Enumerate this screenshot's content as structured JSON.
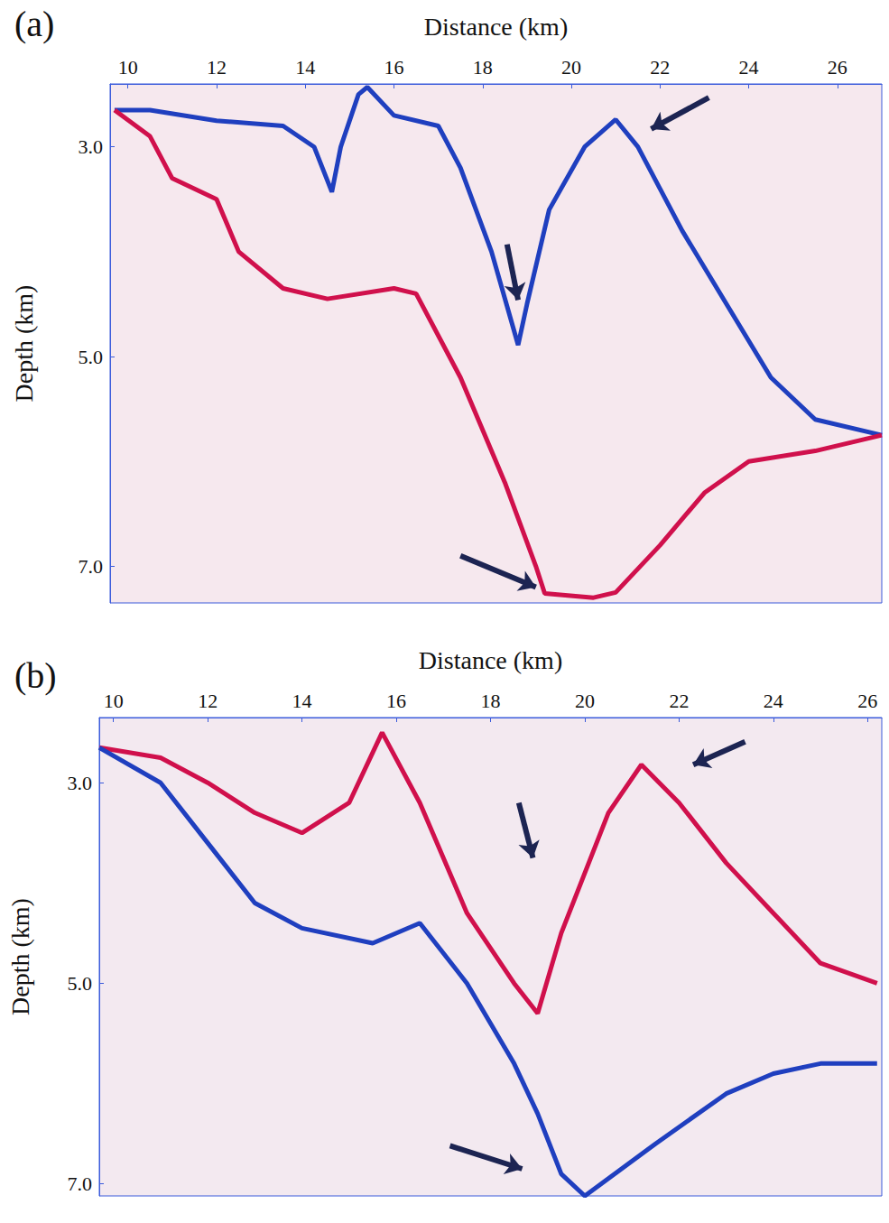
{
  "chart_data": [
    {
      "type": "line",
      "title": "(a)",
      "x_label": "Distance (km)",
      "y_label": "Depth (km)",
      "xlim": [
        9.6,
        27.0
      ],
      "ylim": [
        2.4,
        7.35
      ],
      "xticks": [
        10,
        12,
        14,
        16,
        18,
        20,
        22,
        24,
        26
      ],
      "yticks": [
        {
          "value": 3,
          "label": "3.0"
        },
        {
          "value": 5,
          "label": "5.0"
        },
        {
          "value": 7,
          "label": "7.0"
        }
      ],
      "grid": false,
      "series": [
        {
          "color": "#1f3fbf",
          "line_style": "solid",
          "x": [
            9.7,
            10.5,
            12,
            13.5,
            14.2,
            14.6,
            14.8,
            15.2,
            15.4,
            16,
            17,
            17.5,
            18.2,
            18.8,
            19.0,
            19.5,
            20.3,
            21.0,
            21.5,
            22.5,
            23.5,
            24.5,
            25.5,
            27
          ],
          "values": [
            2.65,
            2.65,
            2.75,
            2.8,
            3.0,
            3.43,
            3.0,
            2.5,
            2.43,
            2.7,
            2.8,
            3.2,
            4.0,
            4.89,
            4.5,
            3.6,
            3.0,
            2.74,
            3.0,
            3.8,
            4.5,
            5.2,
            5.6,
            5.75
          ]
        },
        {
          "color": "#d0104c",
          "line_style": "solid",
          "x": [
            9.7,
            10.5,
            11,
            12,
            12.5,
            13.5,
            14.5,
            16,
            16.5,
            17.5,
            18.5,
            19.2,
            19.4,
            20.5,
            21,
            22,
            23,
            24,
            25.5,
            27
          ],
          "values": [
            2.65,
            2.9,
            3.3,
            3.5,
            4.0,
            4.35,
            4.45,
            4.35,
            4.4,
            5.2,
            6.2,
            7.0,
            7.26,
            7.3,
            7.25,
            6.8,
            6.3,
            6.0,
            5.9,
            5.75
          ]
        }
      ],
      "arrows": [
        {
          "x": [
            23.1,
            21.8
          ],
          "y": [
            2.53,
            2.83
          ]
        },
        {
          "x": [
            18.55,
            18.8
          ],
          "y": [
            3.93,
            4.46
          ]
        },
        {
          "x": [
            17.5,
            19.2
          ],
          "y": [
            6.9,
            7.2
          ]
        }
      ]
    },
    {
      "type": "line",
      "title": "(b)",
      "x_label": "Distance (km)",
      "y_label": "Depth (km)",
      "xlim": [
        9.7,
        26.3
      ],
      "ylim": [
        2.35,
        7.12
      ],
      "xticks": [
        10,
        12,
        14,
        16,
        18,
        20,
        22,
        24,
        26
      ],
      "yticks": [
        {
          "value": 3,
          "label": "3.0"
        },
        {
          "value": 5,
          "label": "5.0"
        },
        {
          "value": 7,
          "label": "7.0"
        }
      ],
      "grid": false,
      "series": [
        {
          "color": "#d0104c",
          "line_style": "solid",
          "x": [
            9.7,
            11,
            12,
            13,
            14,
            15,
            15.5,
            15.7,
            16.5,
            17.5,
            18.5,
            19,
            19.5,
            20.5,
            21.2,
            22,
            23,
            24,
            25,
            26.2
          ],
          "values": [
            2.65,
            2.75,
            3.0,
            3.3,
            3.5,
            3.2,
            2.7,
            2.5,
            3.2,
            4.3,
            5.0,
            5.3,
            4.5,
            3.3,
            2.82,
            3.2,
            3.8,
            4.3,
            4.8,
            5.0
          ]
        },
        {
          "color": "#1f3fbf",
          "line_style": "solid",
          "x": [
            9.7,
            11,
            12,
            13,
            14,
            15.5,
            16.5,
            17.5,
            18.5,
            19,
            19.5,
            20,
            21.5,
            23,
            24,
            25,
            26.2
          ],
          "values": [
            2.65,
            3.0,
            3.6,
            4.2,
            4.45,
            4.6,
            4.4,
            5.0,
            5.8,
            6.3,
            6.9,
            7.12,
            6.6,
            6.1,
            5.9,
            5.8,
            5.8
          ]
        }
      ],
      "arrows": [
        {
          "x": [
            23.4,
            22.3
          ],
          "y": [
            2.59,
            2.82
          ]
        },
        {
          "x": [
            18.6,
            18.9
          ],
          "y": [
            3.2,
            3.75
          ]
        },
        {
          "x": [
            17.14,
            18.67
          ],
          "y": [
            6.62,
            6.85
          ]
        }
      ]
    }
  ]
}
